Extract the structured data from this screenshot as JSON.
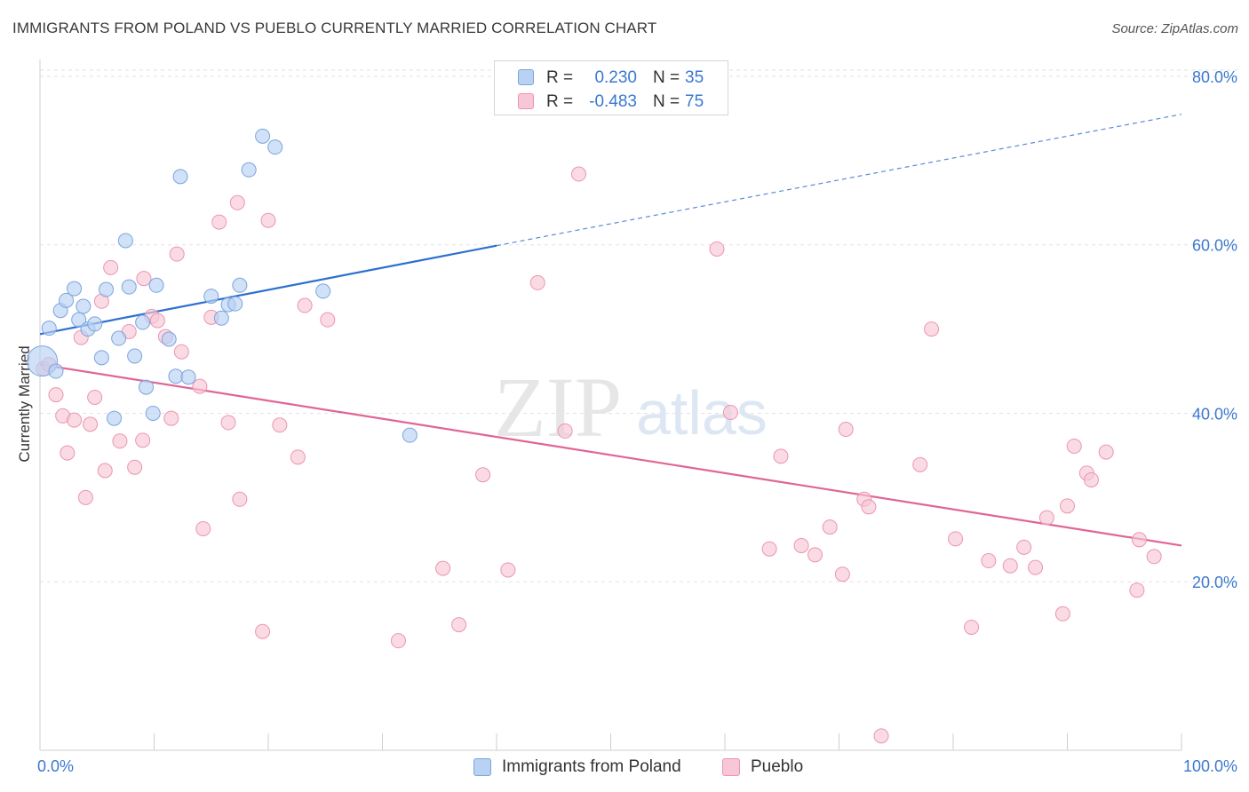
{
  "title": "IMMIGRANTS FROM POLAND VS PUEBLO CURRENTLY MARRIED CORRELATION CHART",
  "source": "Source: ZipAtlas.com",
  "watermark": {
    "zip": "ZIP",
    "atlas": "atlas"
  },
  "colors": {
    "blue_fill": "#b9d1f3",
    "blue_stroke": "#7aa5de",
    "blue_line": "#2c6fd0",
    "pink_fill": "#f8c7d6",
    "pink_stroke": "#ec94b2",
    "pink_line": "#e06596",
    "axis_label": "#3b78d1",
    "grid": "#e2e2e2"
  },
  "stats": [
    {
      "r_label": "R =",
      "r_value": "0.230",
      "n_label": "N =",
      "n_value": "35",
      "series": "blue"
    },
    {
      "r_label": "R =",
      "r_value": "-0.483",
      "n_label": "N =",
      "n_value": "75",
      "series": "pink"
    }
  ],
  "legend": [
    {
      "label": "Immigrants from Poland",
      "series": "blue"
    },
    {
      "label": "Pueblo",
      "series": "pink"
    }
  ],
  "chart_data": {
    "type": "scatter",
    "title": "IMMIGRANTS FROM POLAND VS PUEBLO CURRENTLY MARRIED CORRELATION CHART",
    "xlabel": "",
    "ylabel": "Currently Married",
    "xlim": [
      0,
      100
    ],
    "ylim": [
      0,
      82
    ],
    "x_tick_labels": [
      "0.0%",
      "100.0%"
    ],
    "y_ticks": [
      20,
      40,
      60,
      80
    ],
    "y_tick_labels": [
      "20.0%",
      "40.0%",
      "60.0%",
      "80.0%"
    ],
    "grid": true,
    "legend_position": "bottom-center",
    "series": [
      {
        "name": "Immigrants from Poland",
        "color": "blue",
        "points": [
          [
            0.2,
            46.2,
            "large"
          ],
          [
            1.4,
            45
          ],
          [
            0.8,
            50.1
          ],
          [
            1.8,
            52.2
          ],
          [
            2.3,
            53.4
          ],
          [
            3,
            54.8
          ],
          [
            3.4,
            51.1
          ],
          [
            3.8,
            52.7
          ],
          [
            4.2,
            50
          ],
          [
            4.8,
            50.6
          ],
          [
            5.4,
            46.6
          ],
          [
            5.8,
            54.7
          ],
          [
            6.5,
            39.4
          ],
          [
            6.9,
            48.9
          ],
          [
            7.5,
            60.5
          ],
          [
            7.8,
            55
          ],
          [
            8.3,
            46.8
          ],
          [
            9,
            50.8
          ],
          [
            9.3,
            43.1
          ],
          [
            9.9,
            40
          ],
          [
            10.2,
            55.2
          ],
          [
            11.3,
            48.8
          ],
          [
            11.9,
            44.4
          ],
          [
            12.3,
            68.1
          ],
          [
            13,
            44.3
          ],
          [
            15,
            53.9
          ],
          [
            15.9,
            51.3
          ],
          [
            16.5,
            52.9
          ],
          [
            17.1,
            53
          ],
          [
            17.5,
            55.2
          ],
          [
            18.3,
            68.9
          ],
          [
            19.5,
            72.9
          ],
          [
            20.6,
            71.6
          ],
          [
            24.8,
            54.5
          ],
          [
            32.4,
            37.4
          ]
        ],
        "trendline": {
          "x": [
            0,
            40
          ],
          "y": [
            49.4,
            59.9
          ]
        },
        "trendline_extension": {
          "x": [
            40,
            100
          ],
          "y": [
            59.9,
            75.5
          ]
        }
      },
      {
        "name": "Pueblo",
        "color": "pink",
        "points": [
          [
            0.3,
            45.3
          ],
          [
            0.8,
            45.8
          ],
          [
            1.4,
            42.2
          ],
          [
            2,
            39.7
          ],
          [
            2.4,
            35.3
          ],
          [
            3,
            39.2
          ],
          [
            3.6,
            49
          ],
          [
            4,
            30
          ],
          [
            4.4,
            38.7
          ],
          [
            4.8,
            41.9
          ],
          [
            5.4,
            53.3
          ],
          [
            5.7,
            33.2
          ],
          [
            6.2,
            57.3
          ],
          [
            7,
            36.7
          ],
          [
            7.8,
            49.7
          ],
          [
            8.3,
            33.6
          ],
          [
            9,
            36.8
          ],
          [
            9.1,
            56
          ],
          [
            9.8,
            51.5
          ],
          [
            10.3,
            51
          ],
          [
            11,
            49.1
          ],
          [
            11.5,
            39.4
          ],
          [
            12,
            58.9
          ],
          [
            12.4,
            47.3
          ],
          [
            14,
            43.2
          ],
          [
            14.3,
            26.3
          ],
          [
            15,
            51.4
          ],
          [
            15.7,
            62.7
          ],
          [
            16.5,
            38.9
          ],
          [
            17.3,
            65
          ],
          [
            17.5,
            29.8
          ],
          [
            19.5,
            14.1
          ],
          [
            20,
            62.9
          ],
          [
            21,
            38.6
          ],
          [
            22.6,
            34.8
          ],
          [
            23.2,
            52.8
          ],
          [
            25.2,
            51.1
          ],
          [
            31.4,
            13
          ],
          [
            35.3,
            21.6
          ],
          [
            36.7,
            14.9
          ],
          [
            38.8,
            32.7
          ],
          [
            41,
            21.4
          ],
          [
            43.6,
            55.5
          ],
          [
            46,
            37.9
          ],
          [
            47.2,
            68.4
          ],
          [
            59.3,
            59.5
          ],
          [
            60.5,
            40.1
          ],
          [
            63.9,
            23.9
          ],
          [
            64.9,
            34.9
          ],
          [
            66.7,
            24.3
          ],
          [
            67.9,
            23.2
          ],
          [
            69.2,
            26.5
          ],
          [
            70.3,
            20.9
          ],
          [
            70.6,
            38.1
          ],
          [
            72.2,
            29.8
          ],
          [
            72.6,
            28.9
          ],
          [
            73.7,
            1.7
          ],
          [
            77.1,
            33.9
          ],
          [
            78.1,
            50
          ],
          [
            80.2,
            25.1
          ],
          [
            81.6,
            14.6
          ],
          [
            83.1,
            22.5
          ],
          [
            85,
            21.9
          ],
          [
            86.2,
            24.1
          ],
          [
            87.2,
            21.7
          ],
          [
            88.2,
            27.6
          ],
          [
            89.6,
            16.2
          ],
          [
            90,
            29
          ],
          [
            90.6,
            36.1
          ],
          [
            91.7,
            32.9
          ],
          [
            92.1,
            32.1
          ],
          [
            93.4,
            35.4
          ],
          [
            96.1,
            19
          ],
          [
            96.3,
            25
          ],
          [
            97.6,
            23
          ]
        ],
        "trendline": {
          "x": [
            0,
            100
          ],
          "y": [
            45.8,
            24.3
          ]
        }
      }
    ]
  }
}
